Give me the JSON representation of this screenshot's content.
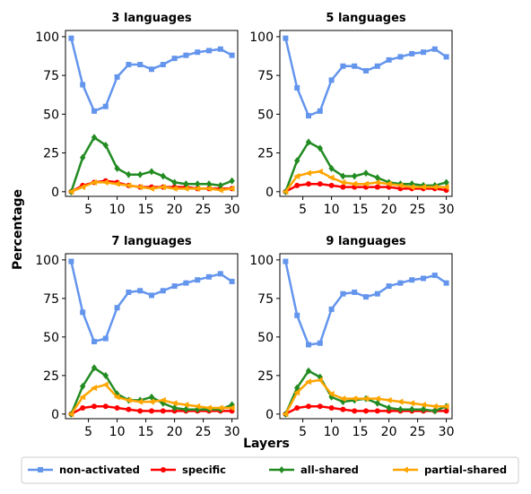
{
  "chart_data": {
    "type": "line",
    "ylabel": "Percentage",
    "xlabel": "Layers",
    "x": [
      2,
      4,
      6,
      8,
      10,
      12,
      14,
      16,
      18,
      20,
      22,
      24,
      26,
      28,
      30
    ],
    "xticks": [
      5,
      10,
      15,
      20,
      25,
      30
    ],
    "yticks": [
      0,
      25,
      50,
      75,
      100
    ],
    "xlim": [
      1,
      31
    ],
    "ylim": [
      -3,
      104
    ],
    "legend": {
      "placement": "bottom",
      "entries": [
        {
          "label": "non-activated",
          "color": "#6495ED",
          "marker": "square"
        },
        {
          "label": "specific",
          "color": "#ff0000",
          "marker": "circle"
        },
        {
          "label": "all-shared",
          "color": "#228B22",
          "marker": "diamond"
        },
        {
          "label": "partial-shared",
          "color": "#FFA500",
          "marker": "left-triangle"
        }
      ]
    },
    "panels": [
      {
        "title": "3 languages",
        "series": [
          {
            "name": "non-activated",
            "values": [
              99,
              69,
              52,
              55,
              74,
              82,
              82,
              79,
              82,
              86,
              88,
              90,
              91,
              92,
              88
            ]
          },
          {
            "name": "specific",
            "values": [
              0,
              4,
              6,
              7,
              6,
              4,
              3,
              3,
              3,
              3,
              3,
              2,
              2,
              2,
              2
            ]
          },
          {
            "name": "all-shared",
            "values": [
              0,
              22,
              35,
              30,
              15,
              11,
              11,
              13,
              10,
              6,
              5,
              5,
              5,
              4,
              7
            ]
          },
          {
            "name": "partial-shared",
            "values": [
              0,
              3,
              6,
              6,
              5,
              4,
              3,
              2,
              3,
              2,
              2,
              2,
              2,
              1,
              2
            ]
          }
        ]
      },
      {
        "title": "5 languages",
        "series": [
          {
            "name": "non-activated",
            "values": [
              99,
              67,
              49,
              52,
              72,
              81,
              81,
              78,
              81,
              85,
              87,
              89,
              90,
              92,
              87
            ]
          },
          {
            "name": "specific",
            "values": [
              0,
              4,
              5,
              5,
              4,
              3,
              3,
              3,
              3,
              3,
              2,
              2,
              2,
              2,
              1
            ]
          },
          {
            "name": "all-shared",
            "values": [
              0,
              20,
              32,
              28,
              15,
              10,
              10,
              12,
              9,
              6,
              5,
              5,
              4,
              4,
              6
            ]
          },
          {
            "name": "partial-shared",
            "values": [
              0,
              10,
              12,
              13,
              9,
              6,
              5,
              5,
              6,
              5,
              4,
              3,
              3,
              3,
              3
            ]
          }
        ]
      },
      {
        "title": "7 languages",
        "series": [
          {
            "name": "non-activated",
            "values": [
              99,
              66,
              47,
              49,
              69,
              79,
              80,
              77,
              80,
              83,
              85,
              87,
              89,
              91,
              86
            ]
          },
          {
            "name": "specific",
            "values": [
              0,
              4,
              5,
              5,
              4,
              3,
              2,
              2,
              2,
              2,
              2,
              2,
              2,
              2,
              2
            ]
          },
          {
            "name": "all-shared",
            "values": [
              0,
              18,
              30,
              25,
              13,
              9,
              9,
              11,
              7,
              4,
              3,
              3,
              3,
              3,
              6
            ]
          },
          {
            "name": "partial-shared",
            "values": [
              0,
              11,
              17,
              19,
              11,
              9,
              8,
              8,
              9,
              7,
              6,
              5,
              4,
              4,
              4
            ]
          }
        ]
      },
      {
        "title": "9 languages",
        "series": [
          {
            "name": "non-activated",
            "values": [
              99,
              64,
              45,
              46,
              68,
              78,
              79,
              76,
              78,
              83,
              85,
              87,
              88,
              90,
              85
            ]
          },
          {
            "name": "specific",
            "values": [
              0,
              4,
              5,
              5,
              4,
              3,
              2,
              2,
              2,
              2,
              2,
              2,
              2,
              2,
              2
            ]
          },
          {
            "name": "all-shared",
            "values": [
              0,
              17,
              28,
              24,
              11,
              8,
              9,
              10,
              7,
              4,
              3,
              3,
              3,
              2,
              5
            ]
          },
          {
            "name": "partial-shared",
            "values": [
              0,
              14,
              21,
              22,
              13,
              10,
              10,
              10,
              10,
              9,
              8,
              7,
              6,
              5,
              5
            ]
          }
        ]
      }
    ]
  }
}
